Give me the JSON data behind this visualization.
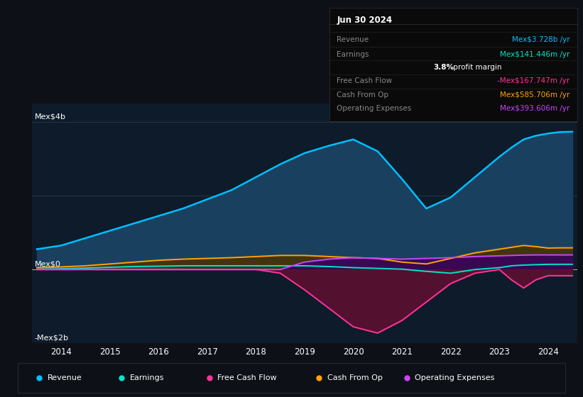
{
  "bg_color": "#0d1117",
  "plot_bg_color": "#0d1b2a",
  "title_box_text": "Jun 30 2024",
  "ylabel_top": "Mex$4b",
  "ylabel_mid": "Mex$0",
  "ylabel_bot": "-Mex$2b",
  "ylim": [
    -2.0,
    4.5
  ],
  "years": [
    2013.5,
    2014.0,
    2014.5,
    2015.0,
    2015.5,
    2016.0,
    2016.5,
    2017.0,
    2017.5,
    2018.0,
    2018.5,
    2019.0,
    2019.5,
    2020.0,
    2020.5,
    2021.0,
    2021.5,
    2022.0,
    2022.5,
    2023.0,
    2023.25,
    2023.5,
    2023.75,
    2024.0,
    2024.25,
    2024.5
  ],
  "revenue": [
    0.55,
    0.65,
    0.85,
    1.05,
    1.25,
    1.45,
    1.65,
    1.9,
    2.15,
    2.5,
    2.85,
    3.15,
    3.35,
    3.52,
    3.2,
    2.45,
    1.65,
    1.95,
    2.5,
    3.05,
    3.3,
    3.52,
    3.62,
    3.68,
    3.72,
    3.728
  ],
  "earnings": [
    0.01,
    0.02,
    0.04,
    0.06,
    0.08,
    0.09,
    0.1,
    0.1,
    0.1,
    0.1,
    0.1,
    0.1,
    0.08,
    0.05,
    0.03,
    0.01,
    -0.05,
    -0.1,
    0.0,
    0.05,
    0.1,
    0.12,
    0.13,
    0.14,
    0.141,
    0.141
  ],
  "free_cash_flow": [
    0.0,
    0.0,
    0.0,
    0.0,
    0.0,
    0.0,
    0.0,
    0.0,
    0.0,
    0.0,
    -0.1,
    -0.55,
    -1.05,
    -1.55,
    -1.72,
    -1.38,
    -0.88,
    -0.38,
    -0.1,
    0.0,
    -0.28,
    -0.5,
    -0.28,
    -0.168,
    -0.168,
    -0.168
  ],
  "cash_from_op": [
    0.05,
    0.07,
    0.1,
    0.15,
    0.2,
    0.25,
    0.28,
    0.3,
    0.32,
    0.35,
    0.38,
    0.38,
    0.35,
    0.32,
    0.3,
    0.2,
    0.15,
    0.3,
    0.45,
    0.55,
    0.6,
    0.65,
    0.62,
    0.58,
    0.586,
    0.586
  ],
  "op_expenses": [
    0.0,
    0.0,
    0.0,
    0.0,
    0.0,
    0.0,
    0.0,
    0.0,
    0.0,
    0.0,
    0.0,
    0.2,
    0.28,
    0.32,
    0.3,
    0.28,
    0.3,
    0.32,
    0.35,
    0.37,
    0.38,
    0.39,
    0.394,
    0.394,
    0.394,
    0.394
  ],
  "revenue_color": "#00bfff",
  "revenue_fill": "#1a4060",
  "earnings_color": "#00e5c8",
  "earnings_fill": "#004d40",
  "free_cash_flow_color": "#ff3399",
  "free_cash_flow_fill": "#5c1030",
  "cash_from_op_color": "#ffa500",
  "cash_from_op_fill": "#4a3200",
  "op_expenses_color": "#cc44ff",
  "op_expenses_fill": "#3a0060",
  "xticks": [
    2014,
    2015,
    2016,
    2017,
    2018,
    2019,
    2020,
    2021,
    2022,
    2023,
    2024
  ],
  "info_rows": [
    {
      "label": "Revenue",
      "value": "Mex$3.728b /yr",
      "value_color": "#00bfff",
      "label_color": "#888888"
    },
    {
      "label": "Earnings",
      "value": "Mex$141.446m /yr",
      "value_color": "#00e5c8",
      "label_color": "#888888"
    },
    {
      "label": "",
      "value": "3.8% profit margin",
      "value_color": "#ffffff",
      "label_color": "#888888"
    },
    {
      "label": "Free Cash Flow",
      "value": "-Mex$167.747m /yr",
      "value_color": "#ff3399",
      "label_color": "#888888"
    },
    {
      "label": "Cash From Op",
      "value": "Mex$585.706m /yr",
      "value_color": "#ffa500",
      "label_color": "#888888"
    },
    {
      "label": "Operating Expenses",
      "value": "Mex$393.606m /yr",
      "value_color": "#cc44ff",
      "label_color": "#888888"
    }
  ],
  "legend_items": [
    {
      "label": "Revenue",
      "color": "#00bfff"
    },
    {
      "label": "Earnings",
      "color": "#00e5c8"
    },
    {
      "label": "Free Cash Flow",
      "color": "#ff3399"
    },
    {
      "label": "Cash From Op",
      "color": "#ffa500"
    },
    {
      "label": "Operating Expenses",
      "color": "#cc44ff"
    }
  ]
}
